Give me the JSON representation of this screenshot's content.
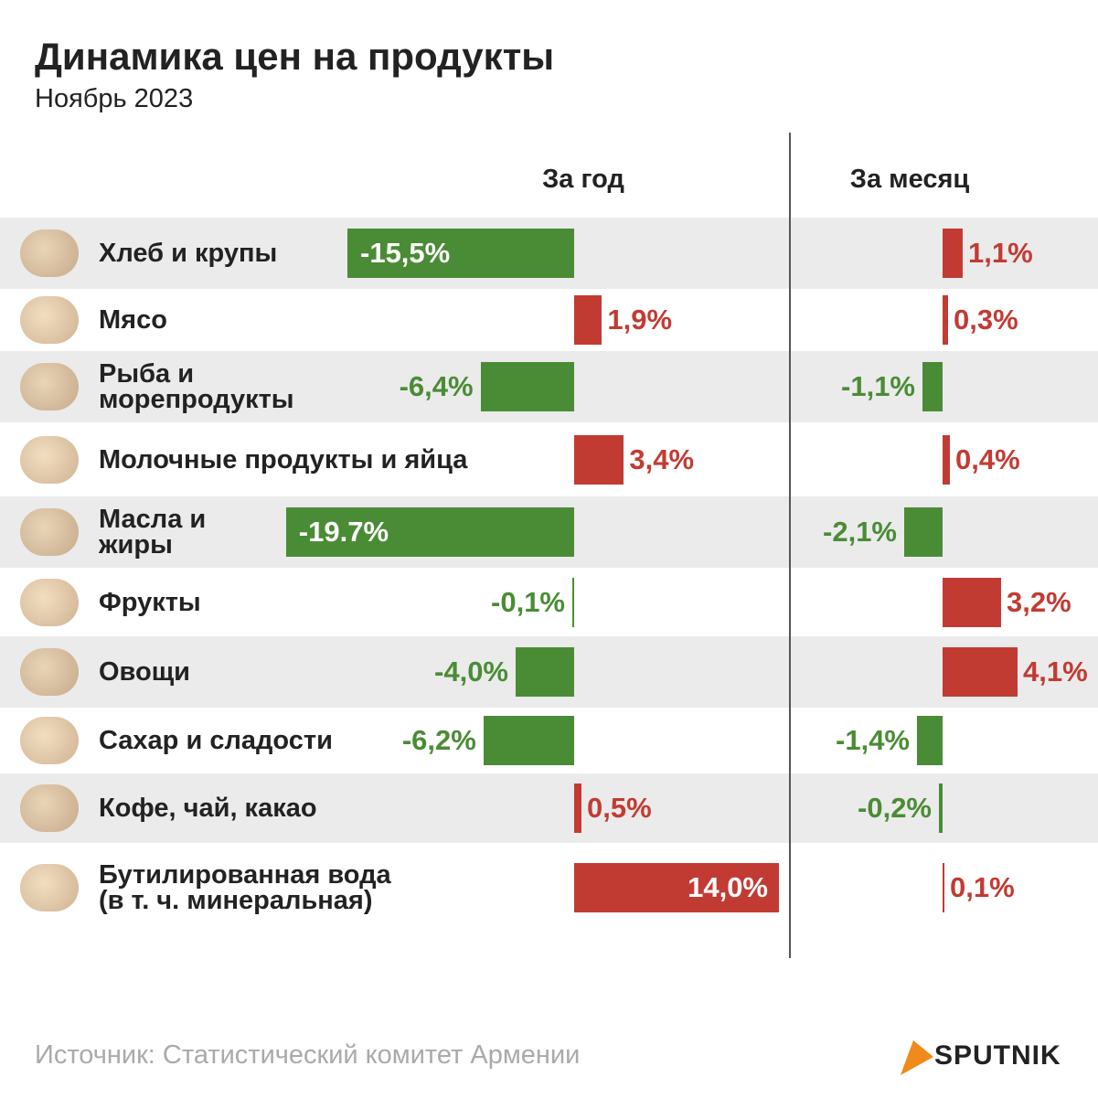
{
  "title": "Динамика цен на продукты",
  "subtitle": "Ноябрь 2023",
  "source": "Источник: Статистический комитет Армении",
  "brand": "SPUTNIK",
  "chart_data": {
    "type": "bar",
    "categories": [
      "Хлеб и крупы",
      "Мясо",
      "Рыба и\nморепродукты",
      "Молочные продукты и яйца",
      "Масла и\nжиры",
      "Фрукты",
      "Овощи",
      "Сахар и сладости",
      "Кофе, чай, какао",
      "Бутилированная вода\n(в т. ч. минеральная)"
    ],
    "colors": {
      "positive": "#c23b33",
      "negative": "#4a8c35"
    },
    "series": [
      {
        "name": "За год",
        "values": [
          -15.5,
          1.9,
          -6.4,
          3.4,
          -19.7,
          -0.1,
          -4.0,
          -6.2,
          0.5,
          14.0
        ],
        "value_labels": [
          "-15,5%",
          "1,9%",
          "-6,4%",
          "3,4%",
          "-19.7%",
          "-0,1%",
          "-4,0%",
          "-6,2%",
          "0,5%",
          "14,0%"
        ]
      },
      {
        "name": "За месяц",
        "values": [
          1.1,
          0.3,
          -1.1,
          0.4,
          -2.1,
          3.2,
          4.1,
          -1.4,
          -0.2,
          0.1
        ],
        "value_labels": [
          "1,1%",
          "0,3%",
          "-1,1%",
          "0,4%",
          "-2,1%",
          "3,2%",
          "4,1%",
          "-1,4%",
          "-0,2%",
          "0,1%"
        ]
      }
    ]
  }
}
